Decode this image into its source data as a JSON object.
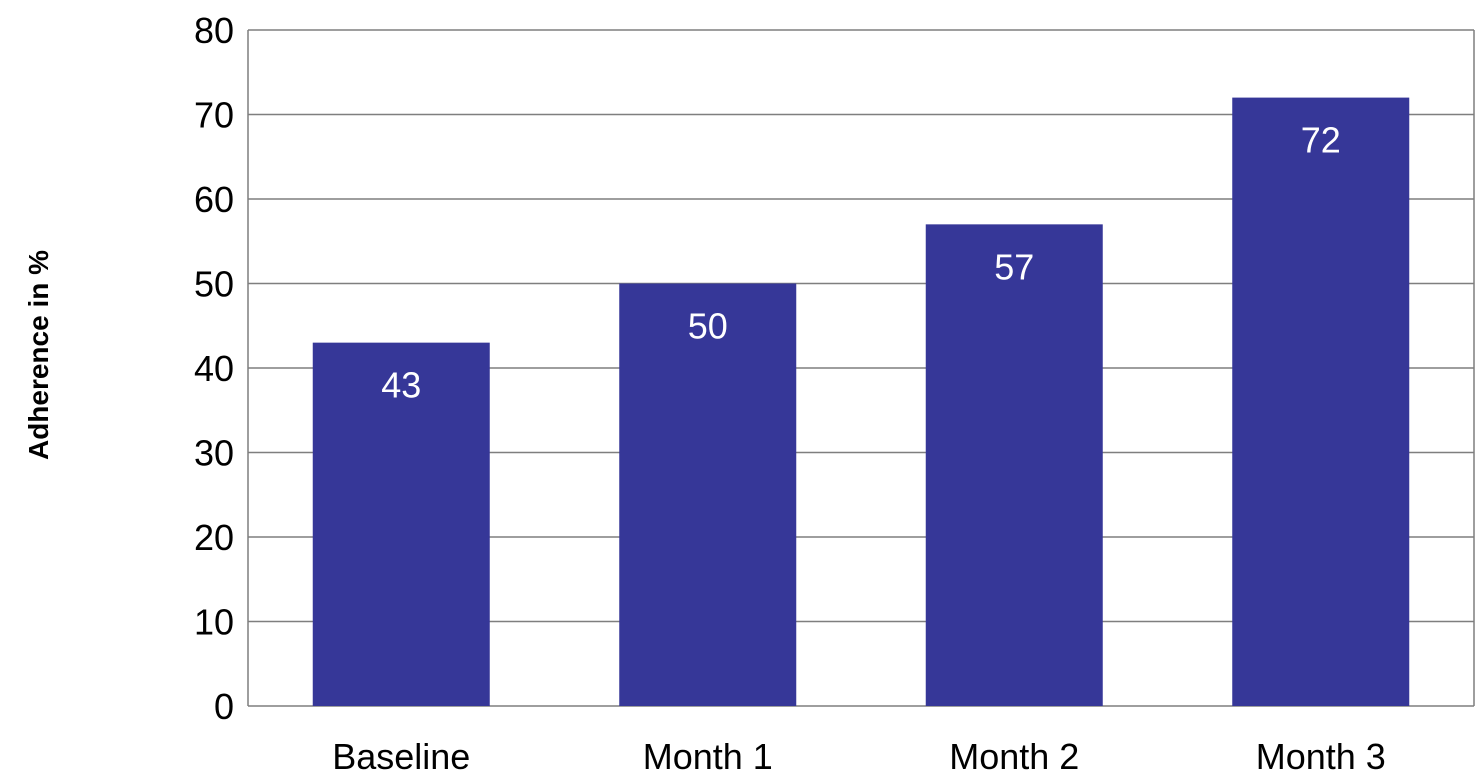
{
  "chart_data": {
    "type": "bar",
    "categories": [
      "Baseline",
      "Month 1",
      "Month 2",
      "Month 3"
    ],
    "values": [
      43,
      50,
      57,
      72
    ],
    "data_labels": [
      "43",
      "50",
      "57",
      "72"
    ],
    "title": "",
    "xlabel": "",
    "ylabel": "Adherence in %",
    "ylim": [
      0,
      80
    ],
    "yticks": [
      0,
      10,
      20,
      30,
      40,
      50,
      60,
      70,
      80
    ],
    "ytick_labels": [
      "0",
      "10",
      "20",
      "30",
      "40",
      "50",
      "60",
      "70",
      "80"
    ],
    "grid": true,
    "legend": "none",
    "colors": {
      "bar": "#363798",
      "grid": "#7f7f7f",
      "data_label": "#ffffff",
      "text": "#000000"
    }
  }
}
